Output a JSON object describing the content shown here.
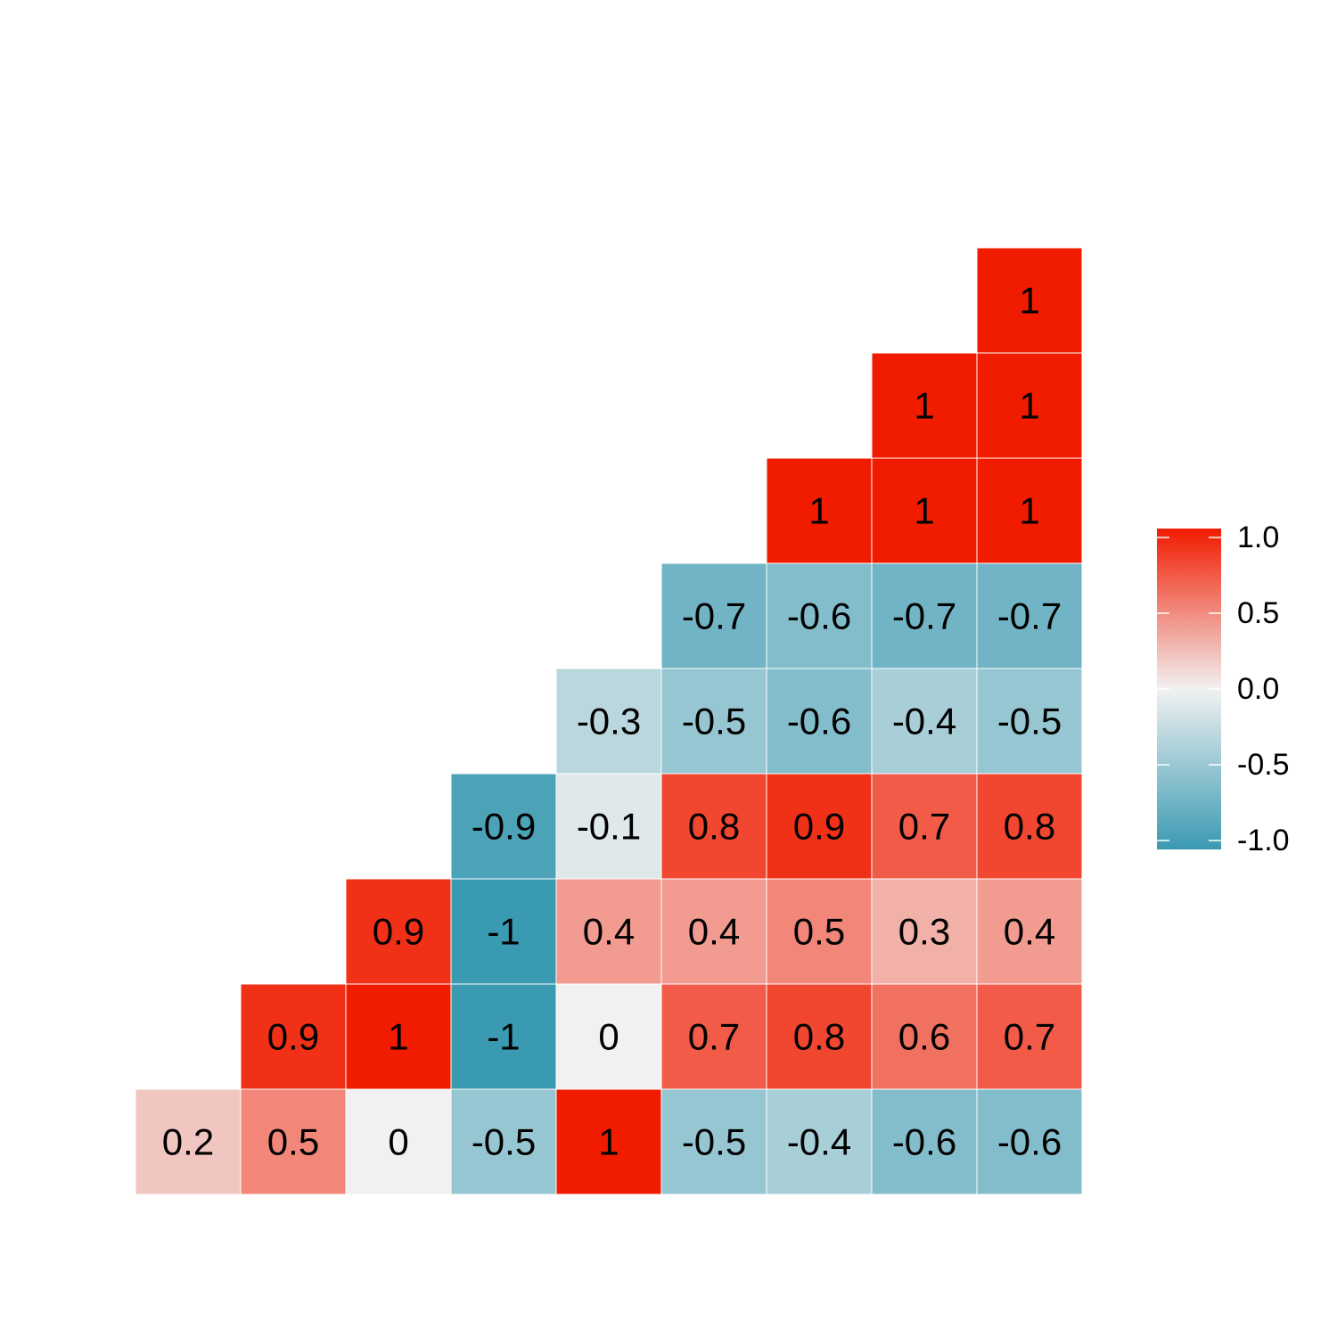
{
  "chart_data": {
    "type": "heatmap",
    "title": "",
    "xlabel": "",
    "ylabel": "",
    "layout": "lower-triangle",
    "rows": [
      {
        "values": [
          1
        ]
      },
      {
        "values": [
          1,
          1
        ]
      },
      {
        "values": [
          1,
          1,
          1
        ]
      },
      {
        "values": [
          -0.7,
          -0.6,
          -0.7,
          -0.7
        ]
      },
      {
        "values": [
          -0.3,
          -0.5,
          -0.6,
          -0.4,
          -0.5
        ]
      },
      {
        "values": [
          -0.9,
          -0.1,
          0.8,
          0.9,
          0.7,
          0.8
        ]
      },
      {
        "values": [
          0.9,
          -1,
          0.4,
          0.4,
          0.5,
          0.3,
          0.4
        ]
      },
      {
        "values": [
          0.9,
          1,
          -1,
          0,
          0.7,
          0.8,
          0.6,
          0.7
        ]
      },
      {
        "values": [
          0.2,
          0.5,
          0,
          -0.5,
          1,
          -0.5,
          -0.4,
          -0.6,
          -0.6
        ]
      }
    ],
    "color_scale": {
      "low": "#3a9ab2",
      "mid": "#f1f1f1",
      "high": "#f11b00",
      "range": [
        -1,
        1
      ]
    },
    "legend": {
      "placement": "right",
      "ticks": [
        "1.0",
        "0.5",
        "0.0",
        "-0.5",
        "-1.0"
      ],
      "tick_values": [
        1,
        0.5,
        0,
        -0.5,
        -1
      ]
    }
  }
}
